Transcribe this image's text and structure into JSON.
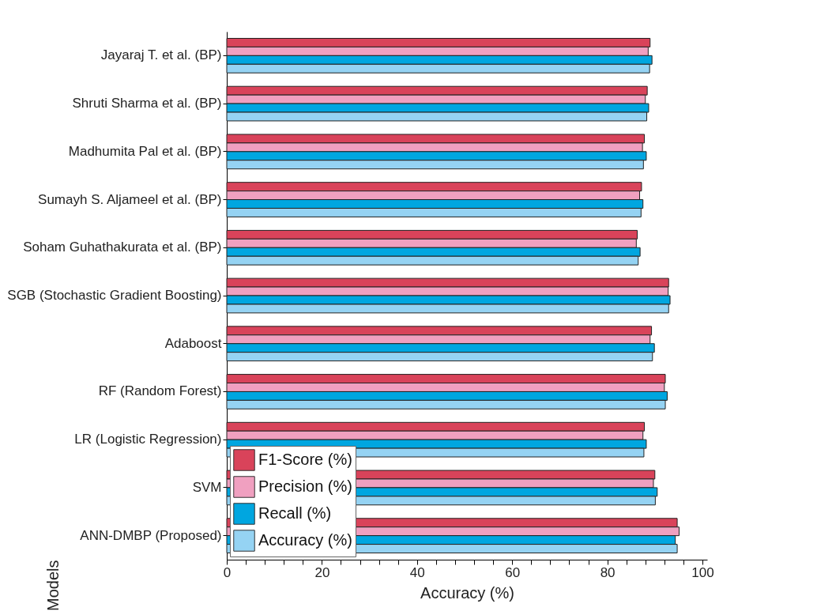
{
  "chart_data": {
    "type": "bar",
    "orientation": "horizontal",
    "xlabel": "Accuracy (%)",
    "ylabel": "Models",
    "categories": [
      "Jayaraj T. et al. (BP)",
      "Shruti Sharma et al. (BP)",
      "Madhumita Pal et al. (BP)",
      "Sumayh S. Aljameel et al. (BP)",
      "Soham Guhathakurata et al. (BP)",
      "SGB (Stochastic Gradient Boosting)",
      "Adaboost",
      "RF (Random Forest)",
      "LR (Logistic Regression)",
      "SVM",
      "ANN-DMBP (Proposed)"
    ],
    "series": [
      {
        "name": "F1-Score (%)",
        "color": "#d9435a",
        "values": [
          89.0,
          88.4,
          87.8,
          87.2,
          86.3,
          92.9,
          89.3,
          92.2,
          87.8,
          90.0,
          94.7
        ]
      },
      {
        "name": "Precision (%)",
        "color": "#f0a0c0",
        "values": [
          88.6,
          88.0,
          87.4,
          86.8,
          86.1,
          92.8,
          89.0,
          92.0,
          87.5,
          89.7,
          95.1
        ]
      },
      {
        "name": "Recall (%)",
        "color": "#00a6e0",
        "values": [
          89.4,
          88.7,
          88.2,
          87.5,
          86.9,
          93.2,
          89.9,
          92.6,
          88.2,
          90.5,
          94.3
        ]
      },
      {
        "name": "Accuracy (%)",
        "color": "#95d3f3",
        "values": [
          88.9,
          88.3,
          87.6,
          87.1,
          86.5,
          92.9,
          89.5,
          92.2,
          87.7,
          90.1,
          94.7
        ]
      }
    ],
    "xlim": [
      0,
      101
    ],
    "xticks": [
      0,
      {
        "value": 4,
        "label": null
      },
      {
        "value": 8,
        "label": null
      },
      {
        "value": 12,
        "label": null
      },
      {
        "value": 16,
        "label": null
      },
      20,
      {
        "value": 24,
        "label": null
      },
      {
        "value": 28,
        "label": null
      },
      {
        "value": 32,
        "label": null
      },
      {
        "value": 36,
        "label": null
      },
      40,
      {
        "value": 44,
        "label": null
      },
      {
        "value": 48,
        "label": null
      },
      {
        "value": 52,
        "label": null
      },
      {
        "value": 56,
        "label": null
      },
      60,
      {
        "value": 64,
        "label": null
      },
      {
        "value": 68,
        "label": null
      },
      {
        "value": 72,
        "label": null
      },
      {
        "value": 76,
        "label": null
      },
      80,
      {
        "value": 84,
        "label": null
      },
      {
        "value": 88,
        "label": null
      },
      {
        "value": 92,
        "label": null
      },
      {
        "value": 96,
        "label": null
      },
      100
    ],
    "grid": false,
    "legend": "bottom left"
  }
}
